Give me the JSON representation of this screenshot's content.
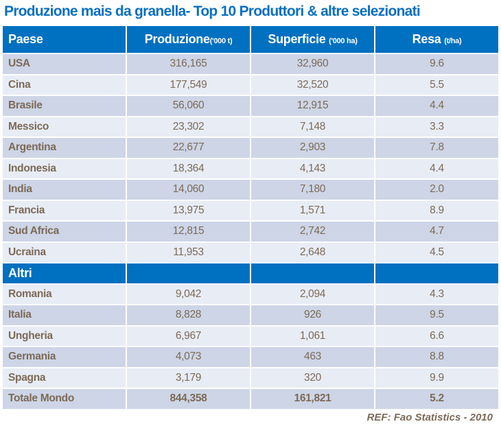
{
  "title": "Produzione mais da granella- Top 10 Produttori & altre selezionati",
  "header": [
    {
      "label": "Paese",
      "unit": ""
    },
    {
      "label": "Produzione",
      "unit": "('000 t)"
    },
    {
      "label": "Superficie",
      "unit": "('000 ha)"
    },
    {
      "label": "Resa",
      "unit": "(t/ha)"
    }
  ],
  "top_rows": [
    [
      "USA",
      "316,165",
      "32,960",
      "9.6"
    ],
    [
      "Cina",
      "177,549",
      "32,520",
      "5.5"
    ],
    [
      "Brasile",
      "56,060",
      "12,915",
      "4.4"
    ],
    [
      "Messico",
      "23,302",
      "7,148",
      "3.3"
    ],
    [
      "Argentina",
      "22,677",
      "2,903",
      "7.8"
    ],
    [
      "Indonesia",
      "18,364",
      "4,143",
      "4.4"
    ],
    [
      "India",
      "14,060",
      "7,180",
      "2.0"
    ],
    [
      "Francia",
      "13,975",
      "1,571",
      "8.9"
    ],
    [
      "Sud Africa",
      "12,815",
      "2,742",
      "4.7"
    ],
    [
      "Ucraina",
      "11,953",
      "2,648",
      "4.5"
    ]
  ],
  "section_label": "Altri",
  "other_rows": [
    [
      "Romania",
      "9,042",
      "2,094",
      "4.3"
    ],
    [
      "Italia",
      "8,828",
      "926",
      "9.5"
    ],
    [
      "Ungheria",
      "6,967",
      "1,061",
      "6.6"
    ],
    [
      "Germania",
      "4,073",
      "463",
      "8.8"
    ],
    [
      "Spagna",
      "3,179",
      "320",
      "9.9"
    ]
  ],
  "total_row": [
    "Totale Mondo",
    "844,358",
    "161,821",
    "5.2"
  ],
  "reference": "REF:  Fao Statistics  - 2010",
  "colors": {
    "accent": "#0070c0",
    "row_dark": "#cdd5e6",
    "row_light": "#e8ecf5",
    "text": "#7b6a57"
  }
}
